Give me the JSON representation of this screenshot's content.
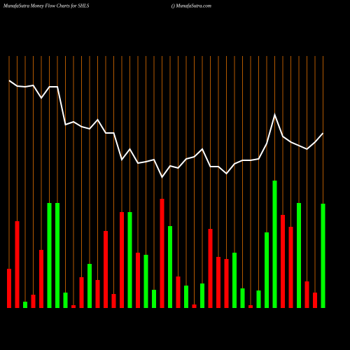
{
  "chart_data": {
    "type": "money-flow",
    "title": "MunafaSutra  Money Flow  Charts for SHLS",
    "subtitle": "() MunafaSutra.com",
    "ylim": [
      0,
      360
    ],
    "grid_color": "#b35900",
    "bars": {
      "values": [
        56,
        124,
        9,
        19,
        83,
        150,
        150,
        22,
        4,
        44,
        63,
        40,
        110,
        20,
        137,
        137,
        79,
        76,
        26,
        156,
        117,
        45,
        32,
        5,
        35,
        113,
        73,
        70,
        79,
        28,
        4,
        25,
        108,
        182,
        133,
        116,
        150,
        38,
        22,
        149
      ],
      "colors": [
        "#ff0000",
        "#ff0000",
        "#00ff00",
        "#ff0000",
        "#ff0000",
        "#00ff00",
        "#00ff00",
        "#00ff00",
        "#ff0000",
        "#ff0000",
        "#00ff00",
        "#ff0000",
        "#ff0000",
        "#ff0000",
        "#ff0000",
        "#00ff00",
        "#ff0000",
        "#00ff00",
        "#00ff00",
        "#ff0000",
        "#00ff00",
        "#ff0000",
        "#00ff00",
        "#ff0000",
        "#00ff00",
        "#ff0000",
        "#ff0000",
        "#ff0000",
        "#00ff00",
        "#00ff00",
        "#ff0000",
        "#00ff00",
        "#00ff00",
        "#00ff00",
        "#ff0000",
        "#ff0000",
        "#00ff00",
        "#ff0000",
        "#ff0000",
        "#00ff00"
      ]
    },
    "line": {
      "color": "#ffffff",
      "values": [
        325,
        317,
        316,
        318,
        300,
        316,
        316,
        262,
        266,
        259,
        256,
        269,
        250,
        250,
        212,
        227,
        207,
        209,
        212,
        187,
        203,
        200,
        213,
        216,
        227,
        202,
        202,
        192,
        206,
        211,
        211,
        213,
        235,
        276,
        245,
        237,
        232,
        227,
        237,
        250
      ]
    }
  }
}
